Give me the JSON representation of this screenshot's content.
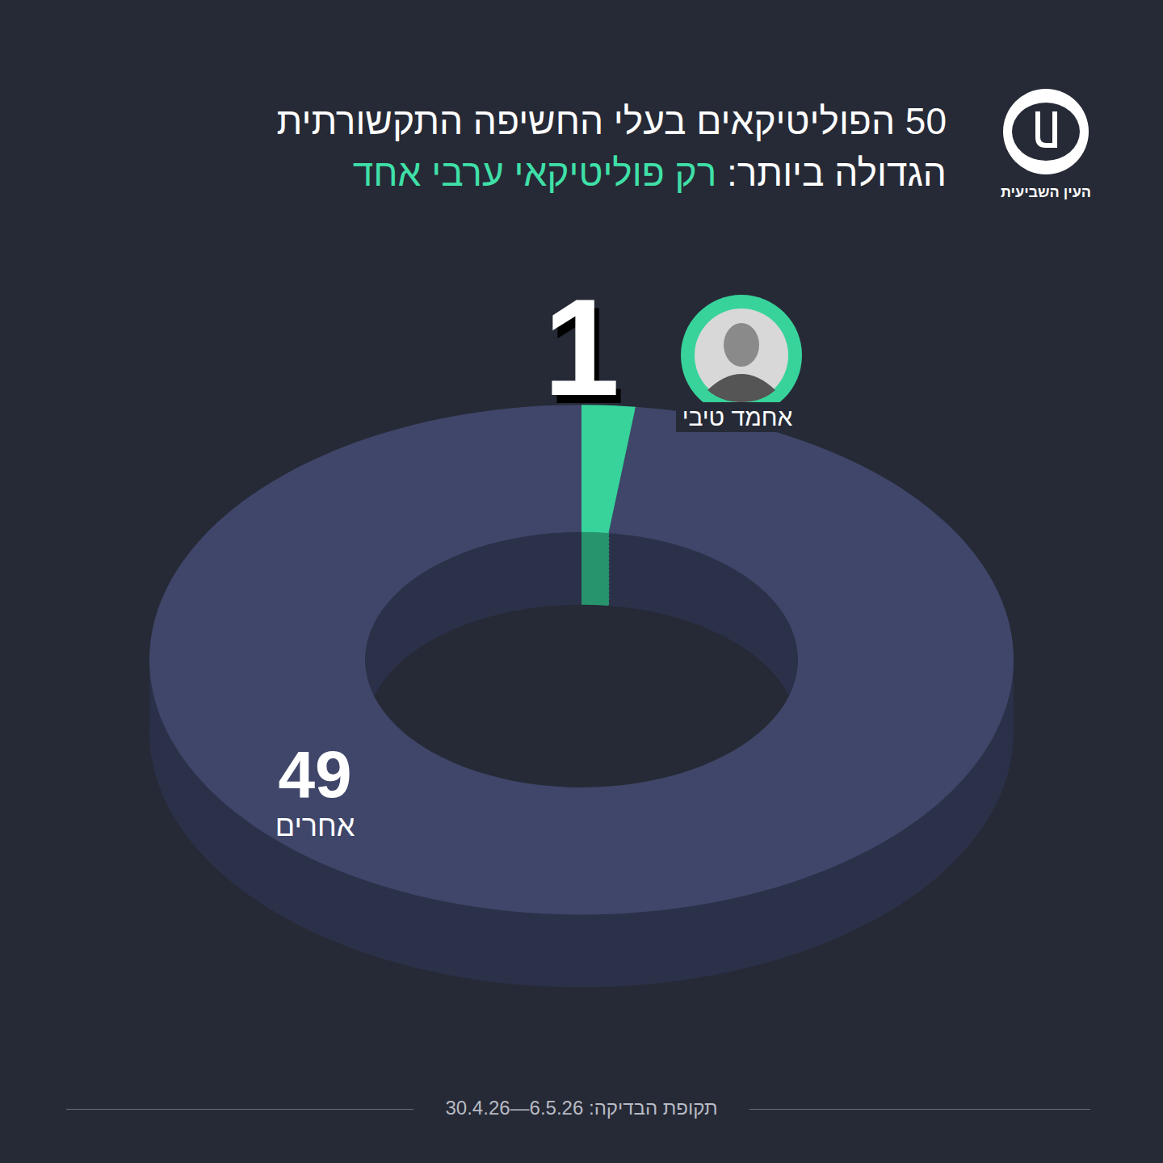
{
  "chart_data": {
    "type": "pie",
    "title_lines": [
      "50 הפוליטיקאים בעלי החשיפה התקשורתית",
      "הגדולה ביותר:"
    ],
    "title_highlight": "רק פוליטיקאי ערבי אחד",
    "categories": [
      "אחמד טיבי",
      "אחרים"
    ],
    "values": [
      1,
      49
    ],
    "colors": [
      "#37d39b",
      "#3f4669"
    ],
    "data_labels": true,
    "source": "העין השביעית",
    "footer_label": "תקופת הבדיקה:",
    "footer_period": "30.4.26—6.5.26"
  }
}
